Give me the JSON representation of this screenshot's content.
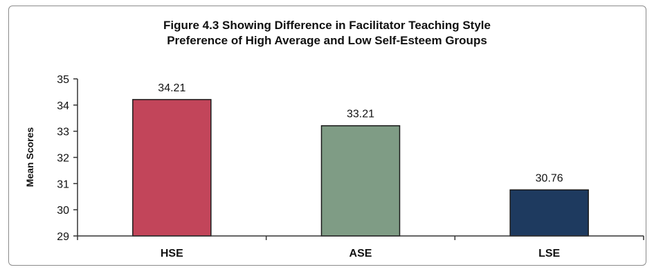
{
  "chart_data": {
    "type": "bar",
    "title": "Figure 4.3 Showing Difference in Facilitator Teaching Style",
    "subtitle": "Preference of High Average and Low Self-Esteem Groups",
    "xlabel": "",
    "ylabel": "Mean Scores",
    "categories": [
      "HSE",
      "ASE",
      "LSE"
    ],
    "values": [
      34.21,
      33.21,
      30.76
    ],
    "data_labels": [
      "34.21",
      "33.21",
      "30.76"
    ],
    "bar_colors": [
      "#c2455a",
      "#7f9c85",
      "#1e3a5f"
    ],
    "ylim": [
      29,
      35
    ],
    "yticks": [
      "29",
      "30",
      "31",
      "32",
      "33",
      "34",
      "35"
    ],
    "grid": false,
    "legend": "none"
  }
}
